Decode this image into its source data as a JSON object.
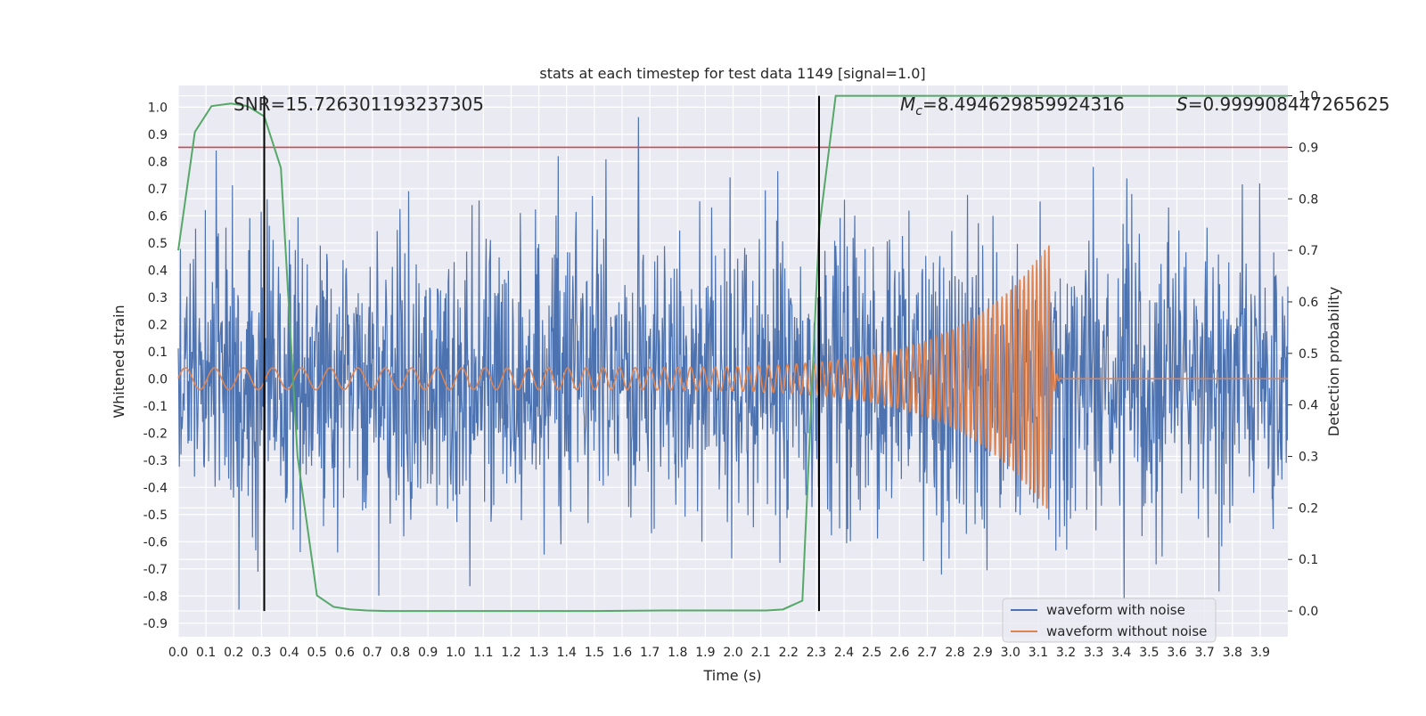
{
  "chart_data": {
    "type": "line",
    "title": "stats at each timestep for test data 1149 [signal=1.0]",
    "xlabel": "Time (s)",
    "ylabel": "Whitened strain",
    "ylabel_right": "Detection probability",
    "xlim": [
      0.0,
      4.0
    ],
    "ylim": [
      -0.95,
      1.08
    ],
    "ylim_right": [
      -0.05,
      1.02
    ],
    "x_ticks": [
      0.0,
      0.1,
      0.2,
      0.3,
      0.4,
      0.5,
      0.6,
      0.7,
      0.8,
      0.9,
      1.0,
      1.1,
      1.2,
      1.3,
      1.4,
      1.5,
      1.6,
      1.7,
      1.8,
      1.9,
      2.0,
      2.1,
      2.2,
      2.3,
      2.4,
      2.5,
      2.6,
      2.7,
      2.8,
      2.9,
      3.0,
      3.1,
      3.2,
      3.3,
      3.4,
      3.5,
      3.6,
      3.7,
      3.8,
      3.9
    ],
    "y_ticks": [
      -0.9,
      -0.8,
      -0.7,
      -0.6,
      -0.5,
      -0.4,
      -0.3,
      -0.2,
      -0.1,
      0.0,
      0.1,
      0.2,
      0.3,
      0.4,
      0.5,
      0.6,
      0.7,
      0.8,
      0.9,
      1.0
    ],
    "y_ticks_right": [
      0.0,
      0.1,
      0.2,
      0.3,
      0.4,
      0.5,
      0.6,
      0.7,
      0.8,
      0.9,
      1.0
    ],
    "grid": true,
    "legend_position": "lower-right",
    "annotations": {
      "snr": "SNR=15.726301193237305",
      "mc_symbol": "M",
      "mc_subscript": "c",
      "mc_value": "=8.494629859924316",
      "s_symbol": "S",
      "s_value": "=0.999908447265625"
    },
    "series": [
      {
        "name": "waveform with noise",
        "axis": "left",
        "color": "#4c72b0",
        "generated": "gaussian-noise",
        "noise_sigma": 0.28,
        "noise_min": -0.85,
        "noise_max": 1.0,
        "n_samples": 2048,
        "seed": 1149
      },
      {
        "name": "waveform without noise",
        "axis": "left",
        "color": "#dd8452",
        "generated": "chirp",
        "chirp_f0": 9.5,
        "chirp_f_merge": 70.0,
        "chirp_amp0": 0.04,
        "chirp_amp_peak": 0.5,
        "t_merge": 3.14,
        "n_samples": 4000
      },
      {
        "name": "detection probability",
        "axis": "right",
        "color": "#55a868",
        "x": [
          0.0,
          0.06,
          0.12,
          0.19,
          0.25,
          0.31,
          0.37,
          0.43,
          0.5,
          0.56,
          0.62,
          0.68,
          0.75,
          1.0,
          1.5,
          1.75,
          2.0,
          2.12,
          2.18,
          2.25,
          2.31,
          2.37,
          2.5,
          3.0,
          3.5,
          4.0
        ],
        "values": [
          0.7,
          0.93,
          0.98,
          0.985,
          0.98,
          0.96,
          0.86,
          0.3,
          0.03,
          0.008,
          0.003,
          0.001,
          0.0,
          0.0,
          0.0,
          0.001,
          0.001,
          0.001,
          0.003,
          0.02,
          0.74,
          1.0,
          1.0,
          1.0,
          1.0,
          1.0
        ]
      }
    ],
    "threshold": {
      "axis": "right",
      "value": 0.9,
      "color": "#c44e52"
    },
    "vertical_markers": {
      "x": [
        0.31,
        2.31
      ],
      "color": "#000000",
      "ymin_right": 0.0,
      "ymax_right": 1.0
    }
  }
}
